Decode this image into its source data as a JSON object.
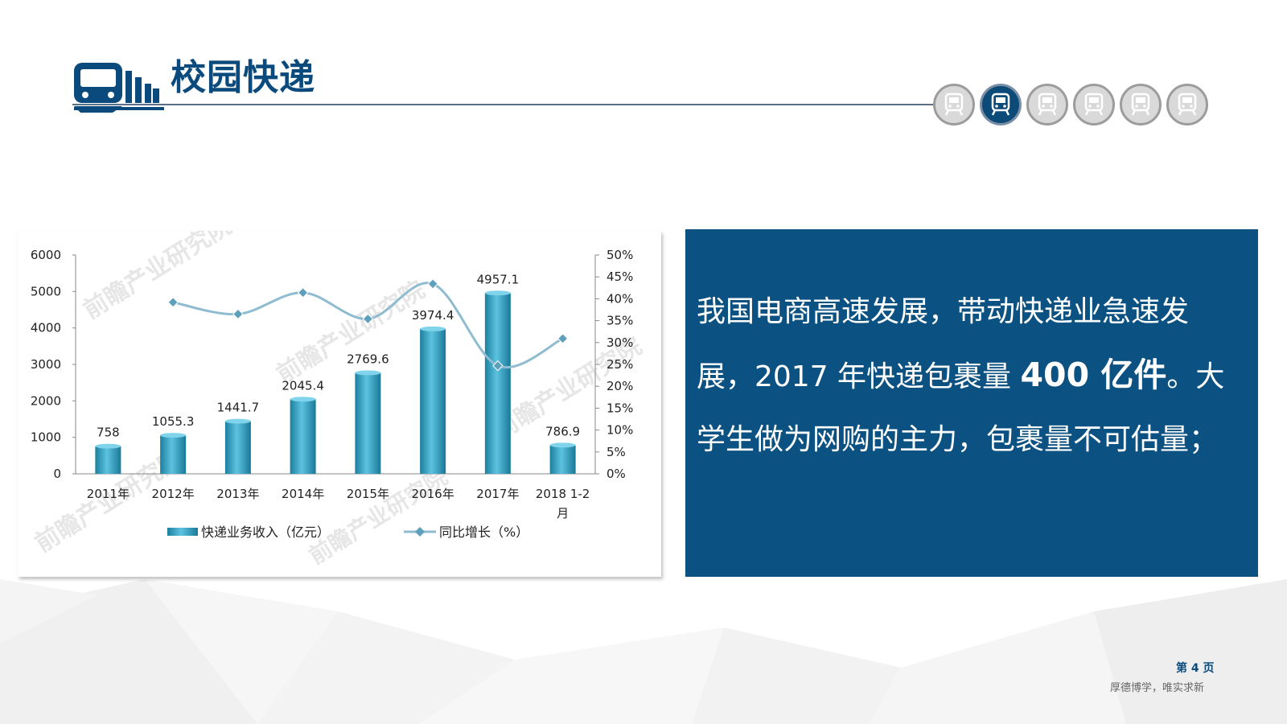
{
  "header": {
    "title": "校园快递",
    "nav_icons": [
      {
        "name": "train-icon",
        "active": false
      },
      {
        "name": "train-icon",
        "active": true
      },
      {
        "name": "train-icon",
        "active": false
      },
      {
        "name": "train-icon",
        "active": false
      },
      {
        "name": "train-icon",
        "active": false
      },
      {
        "name": "train-icon",
        "active": false
      }
    ]
  },
  "chart_data": {
    "type": "bar",
    "categories": [
      "2011年",
      "2012年",
      "2013年",
      "2014年",
      "2015年",
      "2016年",
      "2017年",
      "2018 1-2月"
    ],
    "series": [
      {
        "name": "快递业务收入（亿元）",
        "type": "bar",
        "axis": "left",
        "values": [
          758,
          1055.3,
          1441.7,
          2045.4,
          2769.6,
          3974.4,
          4957.1,
          786.9
        ],
        "color": "#2a98b8"
      },
      {
        "name": "同比增长（%）",
        "type": "line",
        "axis": "right",
        "values": [
          null,
          39.2,
          36.5,
          41.4,
          35.4,
          43.4,
          24.7,
          30.9
        ],
        "color": "#8fbcd0"
      }
    ],
    "ylim_left": [
      0,
      6000
    ],
    "yticks_left": [
      "6000",
      "5000",
      "4000",
      "3000",
      "2000",
      "1000",
      "0"
    ],
    "ylim_right": [
      0,
      50
    ],
    "yticks_right": [
      "50%",
      "45%",
      "40%",
      "35%",
      "30%",
      "25%",
      "20%",
      "15%",
      "10%",
      "5%",
      "0%"
    ],
    "bar_labels": [
      "758",
      "1055.3",
      "1441.7",
      "2045.4",
      "2769.6",
      "3974.4",
      "4957.1",
      "786.9"
    ],
    "legend_placement": "bottom",
    "watermark": "前瞻产业研究院"
  },
  "info": {
    "text_before": "我国电商高速发展，带动快递业急速发展，2017 年快递包裹量 ",
    "highlight": "400 亿件",
    "text_after": "。大学生做为网购的主力，包裹量不可估量；"
  },
  "footer": {
    "page": "第 4 页",
    "motto": "厚德博学，唯实求新"
  },
  "colors": {
    "brand": "#0b4a7c",
    "panel": "#0b5182",
    "bar": "#2a98b8",
    "line": "#8fbcd0"
  }
}
